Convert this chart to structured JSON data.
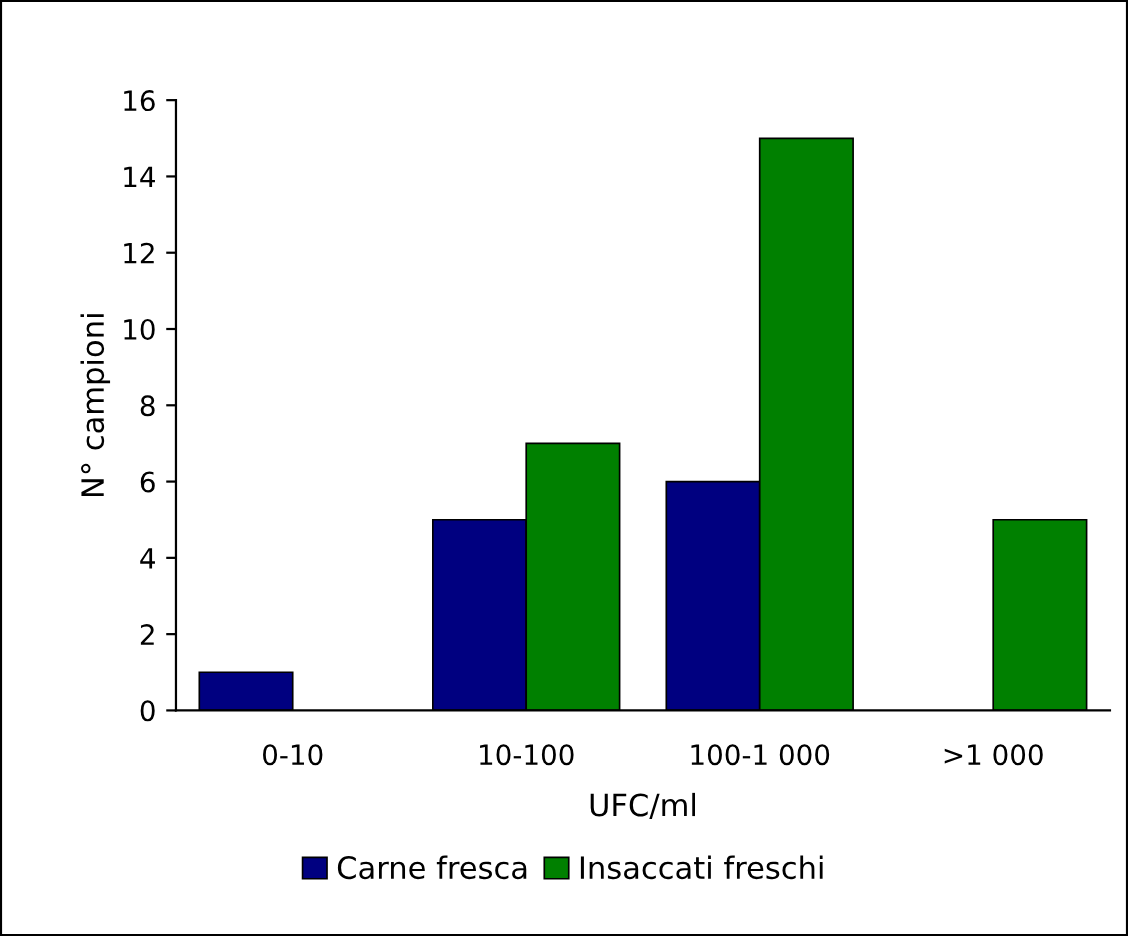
{
  "chart_data": {
    "type": "bar",
    "xlabel": "UFC/ml",
    "ylabel": "N° campioni",
    "categories": [
      "0-10",
      "10-100",
      "100-1 000",
      ">1 000"
    ],
    "series": [
      {
        "name": "Carne fresca",
        "color": "#000080",
        "values": [
          1,
          5,
          6,
          null
        ]
      },
      {
        "name": "Insaccati freschi",
        "color": "#008000",
        "values": [
          null,
          7,
          15,
          5
        ]
      }
    ],
    "ylim": [
      0,
      16
    ],
    "yticks": [
      0,
      2,
      4,
      6,
      8,
      10,
      12,
      14,
      16
    ],
    "grid": false,
    "legend": "bottom"
  }
}
